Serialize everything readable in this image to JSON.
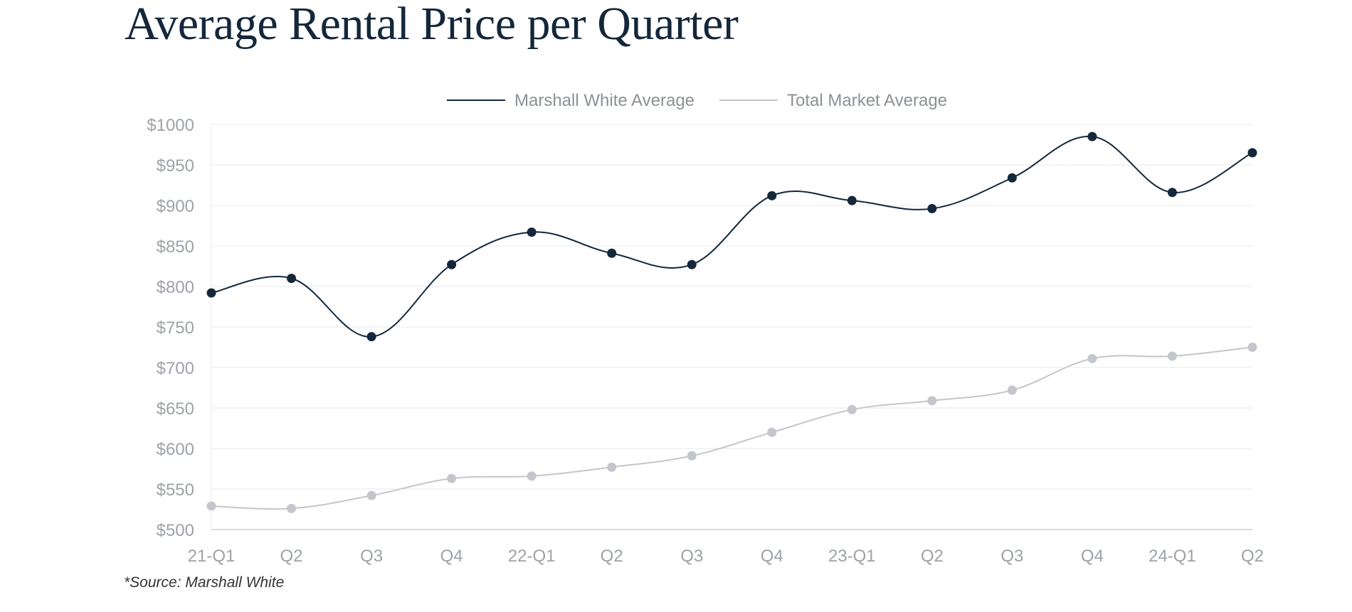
{
  "chart_data": {
    "type": "line",
    "title": "Average Rental Price per Quarter",
    "xlabel": "",
    "ylabel": "",
    "categories": [
      "21-Q1",
      "Q2",
      "Q3",
      "Q4",
      "22-Q1",
      "Q2",
      "Q3",
      "Q4",
      "23-Q1",
      "Q2",
      "Q3",
      "Q4",
      "24-Q1",
      "Q2"
    ],
    "y_tick_labels": [
      "$500",
      "$550",
      "$600",
      "$650",
      "$700",
      "$750",
      "$800",
      "$850",
      "$900",
      "$950",
      "$1000"
    ],
    "y_ticks": [
      500,
      550,
      600,
      650,
      700,
      750,
      800,
      850,
      900,
      950,
      1000
    ],
    "ylim": [
      500,
      1000
    ],
    "grid": true,
    "legend_position": "top-center",
    "series": [
      {
        "name": "Marshall White Average",
        "color": "#14273b",
        "values": [
          792,
          810,
          738,
          827,
          867,
          841,
          827,
          912,
          906,
          896,
          934,
          985,
          916,
          965
        ]
      },
      {
        "name": "Total Market Average",
        "color": "#c4c6cb",
        "values": [
          529,
          526,
          542,
          563,
          566,
          577,
          591,
          620,
          648,
          659,
          672,
          711,
          714,
          725
        ]
      }
    ]
  },
  "source_note": "*Source: Marshall White"
}
